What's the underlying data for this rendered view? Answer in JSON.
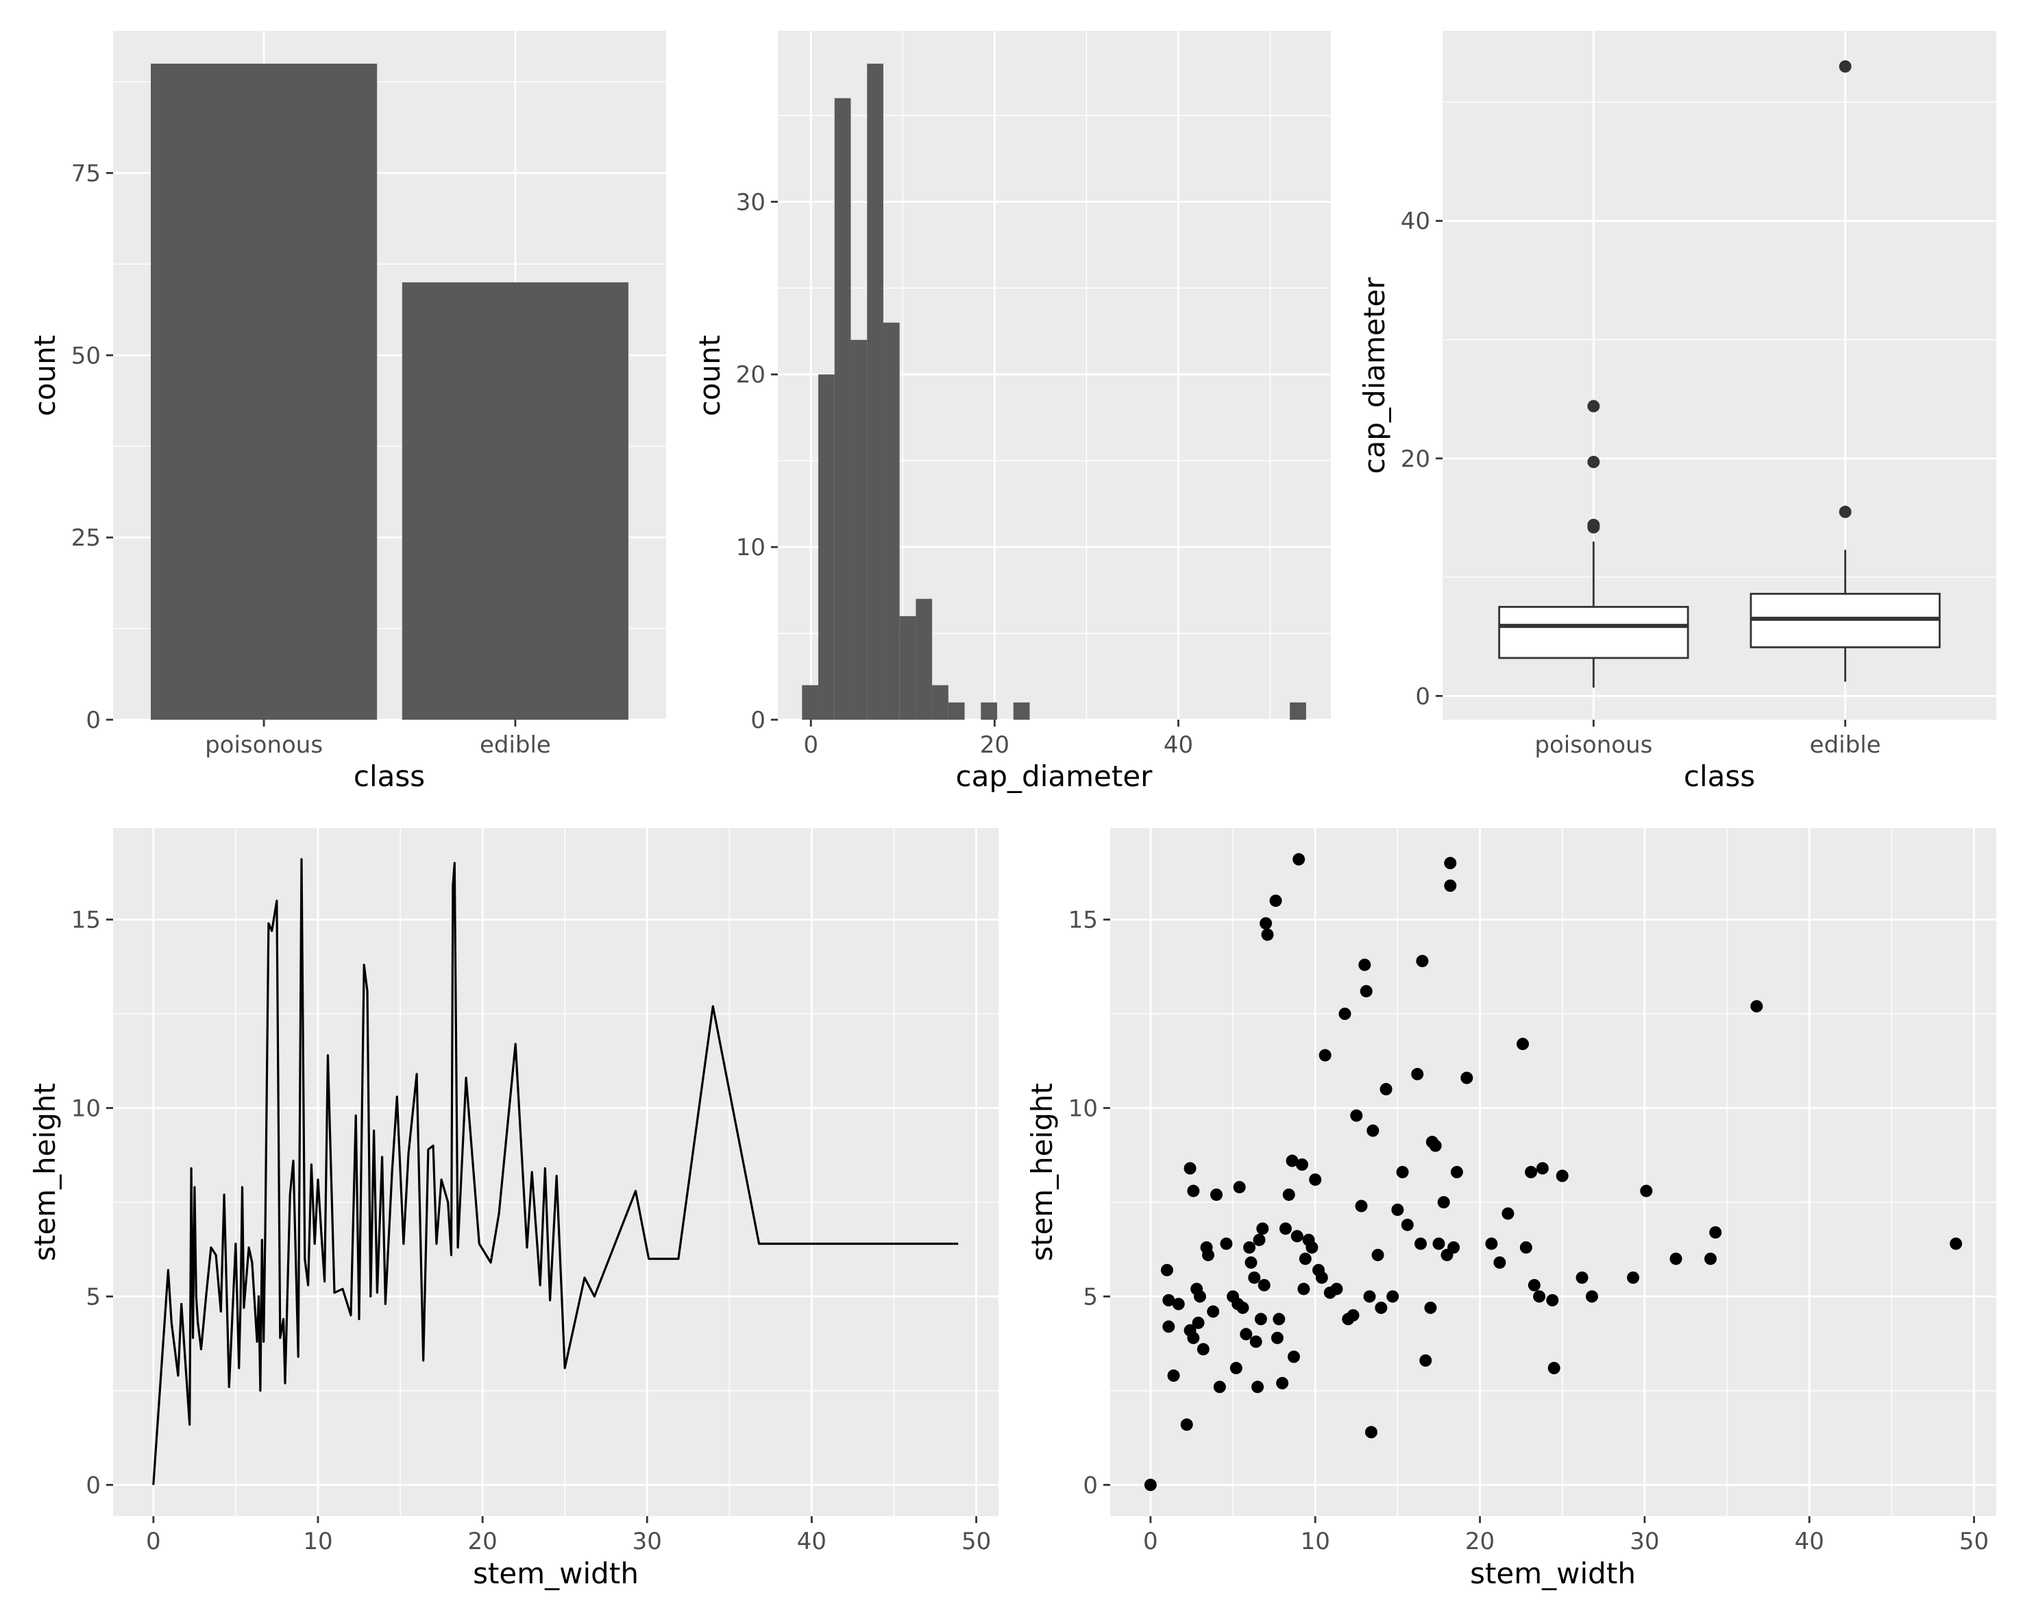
{
  "colors": {
    "panel": "#ebebeb",
    "grid_major": "#ffffff",
    "bar": "#595959",
    "line": "#000000",
    "point": "#000000",
    "box_fill": "#ffffff",
    "box_stroke": "#333333",
    "outlier": "#333333",
    "tick_text": "#4d4d4d",
    "title_text": "#000000"
  },
  "chart_data": [
    {
      "id": "class-bar",
      "type": "bar",
      "title": "",
      "xlabel": "class",
      "ylabel": "count",
      "categories": [
        "poisonous",
        "edible"
      ],
      "values": [
        90,
        60
      ],
      "ylim": [
        0,
        94.5
      ],
      "yticks": [
        0,
        25,
        50,
        75
      ],
      "grid": true,
      "legend": "none"
    },
    {
      "id": "cap-hist",
      "type": "bar",
      "subtype": "histogram",
      "title": "",
      "xlabel": "cap_diameter",
      "ylabel": "count",
      "binwidth": 1.77,
      "bin_centers": [
        -0.08,
        1.69,
        3.46,
        5.23,
        7.0,
        8.77,
        10.54,
        12.31,
        14.08,
        15.85,
        17.62,
        19.39,
        21.16,
        22.93,
        24.7,
        26.47,
        28.24,
        30.01,
        31.78,
        33.55,
        35.32,
        37.09,
        38.86,
        40.63,
        42.4,
        44.17,
        45.94,
        47.71,
        49.48,
        51.25,
        53.02
      ],
      "counts": [
        2,
        20,
        36,
        22,
        38,
        23,
        6,
        7,
        2,
        1,
        0,
        1,
        0,
        1,
        0,
        0,
        0,
        0,
        0,
        0,
        0,
        0,
        0,
        0,
        0,
        0,
        0,
        0,
        0,
        0,
        1
      ],
      "xlim": [
        -3.6,
        56.6
      ],
      "ylim": [
        0,
        39.9
      ],
      "xticks": [
        0,
        20,
        40
      ],
      "yticks": [
        0,
        10,
        20,
        30
      ],
      "grid": true,
      "legend": "none"
    },
    {
      "id": "cap-box",
      "type": "box",
      "title": "",
      "xlabel": "class",
      "ylabel": "cap_diameter",
      "categories": [
        "poisonous",
        "edible"
      ],
      "boxes": [
        {
          "lower_whisker": 0.7,
          "q1": 3.2,
          "median": 5.9,
          "q3": 7.5,
          "upper_whisker": 13.0,
          "outliers": [
            14.2,
            14.4,
            19.7,
            24.4
          ]
        },
        {
          "lower_whisker": 1.2,
          "q1": 4.1,
          "median": 6.5,
          "q3": 8.6,
          "upper_whisker": 12.3,
          "outliers": [
            15.5,
            53.0
          ]
        }
      ],
      "ylim": [
        -2.0,
        56.0
      ],
      "yticks": [
        0,
        20,
        40
      ],
      "grid": true,
      "legend": "none"
    },
    {
      "id": "stem-line",
      "type": "line",
      "title": "",
      "xlabel": "stem_width",
      "ylabel": "stem_height",
      "x": [
        0,
        0.9,
        1.1,
        1.5,
        1.7,
        2.2,
        2.3,
        2.4,
        2.5,
        2.6,
        2.7,
        2.9,
        3.2,
        3.5,
        3.8,
        4.1,
        4.3,
        4.6,
        5.0,
        5.2,
        5.3,
        5.4,
        5.5,
        5.8,
        6.0,
        6.3,
        6.4,
        6.5,
        6.6,
        6.7,
        6.8,
        7.0,
        7.2,
        7.5,
        7.7,
        7.9,
        8.0,
        8.3,
        8.5,
        8.8,
        9.0,
        9.2,
        9.4,
        9.6,
        9.8,
        10.0,
        10.2,
        10.4,
        10.6,
        11.0,
        11.5,
        12.0,
        12.3,
        12.5,
        12.8,
        13.0,
        13.2,
        13.4,
        13.6,
        13.9,
        14.1,
        14.5,
        14.8,
        15.2,
        15.5,
        16.0,
        16.4,
        16.7,
        17.0,
        17.2,
        17.5,
        17.9,
        18.1,
        18.2,
        18.3,
        18.5,
        19.0,
        19.8,
        20.5,
        21.0,
        22.0,
        22.7,
        23.0,
        23.5,
        23.8,
        24.1,
        24.5,
        25.0,
        26.2,
        26.8,
        29.3,
        30.1,
        31.9,
        34.0,
        36.8,
        48.9
      ],
      "y": [
        0,
        5.7,
        4.3,
        2.9,
        4.8,
        1.6,
        8.4,
        3.9,
        7.9,
        5.0,
        4.3,
        3.6,
        5.0,
        6.3,
        6.1,
        4.6,
        7.7,
        2.6,
        6.4,
        3.1,
        4.9,
        7.9,
        4.7,
        6.3,
        5.9,
        3.8,
        5.0,
        2.5,
        6.5,
        3.8,
        6.8,
        14.9,
        14.7,
        15.5,
        3.9,
        4.4,
        2.7,
        7.7,
        8.6,
        3.4,
        16.6,
        6.0,
        5.3,
        8.5,
        6.4,
        8.1,
        6.7,
        5.4,
        11.4,
        5.1,
        5.2,
        4.5,
        9.8,
        4.4,
        13.8,
        13.1,
        5.0,
        9.4,
        5.1,
        8.7,
        4.8,
        8.3,
        10.3,
        6.4,
        8.8,
        10.9,
        3.3,
        8.9,
        9.0,
        6.4,
        8.1,
        7.5,
        6.1,
        15.9,
        16.5,
        6.3,
        10.8,
        6.4,
        5.9,
        7.2,
        11.7,
        6.3,
        8.3,
        5.3,
        8.4,
        4.9,
        8.2,
        3.1,
        5.5,
        5.0,
        7.8,
        6.0,
        6.0,
        12.7,
        6.4,
        6.4
      ],
      "xlim": [
        -2.45,
        51.35
      ],
      "ylim": [
        -0.83,
        17.43
      ],
      "xticks": [
        0,
        10,
        20,
        30,
        40,
        50
      ],
      "yticks": [
        0,
        5,
        10,
        15
      ],
      "grid": true,
      "legend": "none"
    },
    {
      "id": "stem-scatter",
      "type": "scatter",
      "title": "",
      "xlabel": "stem_width",
      "ylabel": "stem_height",
      "points": [
        [
          0,
          0
        ],
        [
          1.0,
          5.7
        ],
        [
          1.1,
          4.9
        ],
        [
          1.1,
          4.2
        ],
        [
          1.4,
          2.9
        ],
        [
          1.7,
          4.8
        ],
        [
          2.2,
          1.6
        ],
        [
          2.4,
          8.4
        ],
        [
          2.4,
          4.1
        ],
        [
          2.6,
          7.8
        ],
        [
          2.6,
          3.9
        ],
        [
          2.8,
          5.2
        ],
        [
          2.9,
          4.3
        ],
        [
          3.0,
          5.0
        ],
        [
          3.2,
          3.6
        ],
        [
          3.4,
          6.3
        ],
        [
          3.5,
          6.1
        ],
        [
          3.8,
          4.6
        ],
        [
          4.0,
          7.7
        ],
        [
          4.2,
          2.6
        ],
        [
          4.6,
          6.4
        ],
        [
          5.0,
          5.0
        ],
        [
          5.2,
          3.1
        ],
        [
          5.3,
          4.8
        ],
        [
          5.4,
          7.9
        ],
        [
          5.6,
          4.7
        ],
        [
          5.8,
          4.0
        ],
        [
          6.0,
          6.3
        ],
        [
          6.1,
          5.9
        ],
        [
          6.3,
          5.5
        ],
        [
          6.4,
          3.8
        ],
        [
          6.5,
          2.6
        ],
        [
          6.6,
          6.5
        ],
        [
          6.7,
          4.4
        ],
        [
          6.8,
          6.8
        ],
        [
          6.9,
          5.3
        ],
        [
          7.0,
          14.9
        ],
        [
          7.1,
          14.6
        ],
        [
          7.6,
          15.5
        ],
        [
          7.7,
          3.9
        ],
        [
          7.8,
          4.4
        ],
        [
          8.0,
          2.7
        ],
        [
          8.2,
          6.8
        ],
        [
          8.4,
          7.7
        ],
        [
          8.6,
          8.6
        ],
        [
          8.7,
          3.4
        ],
        [
          8.9,
          6.6
        ],
        [
          9.0,
          16.6
        ],
        [
          9.2,
          8.5
        ],
        [
          9.3,
          5.2
        ],
        [
          9.4,
          6.0
        ],
        [
          9.6,
          6.5
        ],
        [
          9.8,
          6.3
        ],
        [
          10.0,
          8.1
        ],
        [
          10.2,
          5.7
        ],
        [
          10.4,
          5.5
        ],
        [
          10.6,
          11.4
        ],
        [
          10.9,
          5.1
        ],
        [
          11.3,
          5.2
        ],
        [
          11.8,
          12.5
        ],
        [
          12.0,
          4.4
        ],
        [
          12.3,
          4.5
        ],
        [
          12.5,
          9.8
        ],
        [
          12.8,
          7.4
        ],
        [
          13.0,
          13.8
        ],
        [
          13.1,
          13.1
        ],
        [
          13.3,
          5.0
        ],
        [
          13.4,
          1.4
        ],
        [
          13.5,
          9.4
        ],
        [
          13.8,
          6.1
        ],
        [
          14.0,
          4.7
        ],
        [
          14.3,
          10.5
        ],
        [
          14.7,
          5.0
        ],
        [
          15.0,
          7.3
        ],
        [
          15.3,
          8.3
        ],
        [
          15.6,
          6.9
        ],
        [
          16.2,
          10.9
        ],
        [
          16.4,
          6.4
        ],
        [
          16.5,
          13.9
        ],
        [
          16.7,
          3.3
        ],
        [
          17.0,
          4.7
        ],
        [
          17.1,
          9.1
        ],
        [
          17.3,
          9.0
        ],
        [
          17.5,
          6.4
        ],
        [
          17.8,
          7.5
        ],
        [
          18.0,
          6.1
        ],
        [
          18.2,
          15.9
        ],
        [
          18.2,
          16.5
        ],
        [
          18.4,
          6.3
        ],
        [
          18.6,
          8.3
        ],
        [
          19.2,
          10.8
        ],
        [
          20.7,
          6.4
        ],
        [
          21.2,
          5.9
        ],
        [
          21.7,
          7.2
        ],
        [
          22.6,
          11.7
        ],
        [
          22.8,
          6.3
        ],
        [
          23.1,
          8.3
        ],
        [
          23.3,
          5.3
        ],
        [
          23.6,
          5.0
        ],
        [
          23.8,
          8.4
        ],
        [
          24.4,
          4.9
        ],
        [
          24.5,
          3.1
        ],
        [
          25.0,
          8.2
        ],
        [
          26.2,
          5.5
        ],
        [
          26.8,
          5.0
        ],
        [
          29.3,
          5.5
        ],
        [
          30.1,
          7.8
        ],
        [
          31.9,
          6.0
        ],
        [
          34.0,
          6.0
        ],
        [
          34.3,
          6.7
        ],
        [
          36.8,
          12.7
        ],
        [
          48.9,
          6.4
        ]
      ],
      "xlim": [
        -2.45,
        51.35
      ],
      "ylim": [
        -0.83,
        17.43
      ],
      "xticks": [
        0,
        10,
        20,
        30,
        40,
        50
      ],
      "yticks": [
        0,
        5,
        10,
        15
      ],
      "grid": true,
      "legend": "none"
    }
  ]
}
